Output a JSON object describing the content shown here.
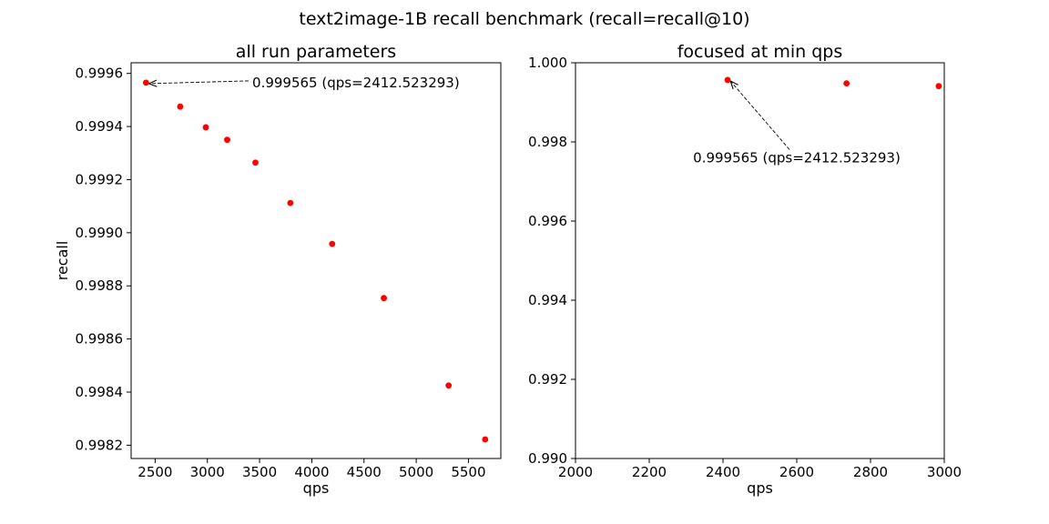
{
  "figure": {
    "suptitle": "text2image-1B recall benchmark (recall=recall@10)"
  },
  "chart_data": [
    {
      "type": "scatter",
      "title": "all run parameters",
      "xlabel": "qps",
      "ylabel": "recall",
      "xlim": [
        2270,
        5810
      ],
      "ylim": [
        0.99815,
        0.99964
      ],
      "xticks": [
        2500,
        3000,
        3500,
        4000,
        4500,
        5000,
        5500
      ],
      "xtick_labels": [
        "2500",
        "3000",
        "3500",
        "4000",
        "4500",
        "5000",
        "5500"
      ],
      "yticks": [
        0.9982,
        0.9984,
        0.9986,
        0.9988,
        0.999,
        0.9992,
        0.9994,
        0.9996
      ],
      "ytick_labels": [
        "0.9982",
        "0.9984",
        "0.9986",
        "0.9988",
        "0.9990",
        "0.9992",
        "0.9994",
        "0.9996"
      ],
      "grid": false,
      "marker_color": "#ff0000",
      "points": [
        {
          "x": 2412.523293,
          "y": 0.999565
        },
        {
          "x": 2740,
          "y": 0.999475
        },
        {
          "x": 2985,
          "y": 0.999397
        },
        {
          "x": 3190,
          "y": 0.99935
        },
        {
          "x": 3460,
          "y": 0.999264
        },
        {
          "x": 3795,
          "y": 0.999112
        },
        {
          "x": 4195,
          "y": 0.998958
        },
        {
          "x": 4690,
          "y": 0.998754
        },
        {
          "x": 5310,
          "y": 0.998425
        },
        {
          "x": 5660,
          "y": 0.998222
        }
      ],
      "annotation": {
        "text": "0.999565 (qps=2412.523293)",
        "x": 2412.523293,
        "y": 0.999565,
        "text_x": 3430,
        "text_y": 0.999565
      }
    },
    {
      "type": "scatter",
      "title": "focused at min qps",
      "xlabel": "qps",
      "ylabel": "",
      "xlim": [
        2000,
        3000
      ],
      "ylim": [
        0.99,
        1.0
      ],
      "xticks": [
        2000,
        2200,
        2400,
        2600,
        2800,
        3000
      ],
      "xtick_labels": [
        "2000",
        "2200",
        "2400",
        "2600",
        "2800",
        "3000"
      ],
      "yticks": [
        0.99,
        0.992,
        0.994,
        0.996,
        0.998,
        1.0
      ],
      "ytick_labels": [
        "0.990",
        "0.992",
        "0.994",
        "0.996",
        "0.998",
        "1.000"
      ],
      "grid": false,
      "marker_color": "#ff0000",
      "points": [
        {
          "x": 2412.523293,
          "y": 0.999565
        },
        {
          "x": 2735,
          "y": 0.99948
        },
        {
          "x": 2985,
          "y": 0.99941
        }
      ],
      "annotation": {
        "text": "0.999565 (qps=2412.523293)",
        "x": 2412.523293,
        "y": 0.999565,
        "text_x": 2600,
        "text_y": 0.9976
      }
    }
  ]
}
